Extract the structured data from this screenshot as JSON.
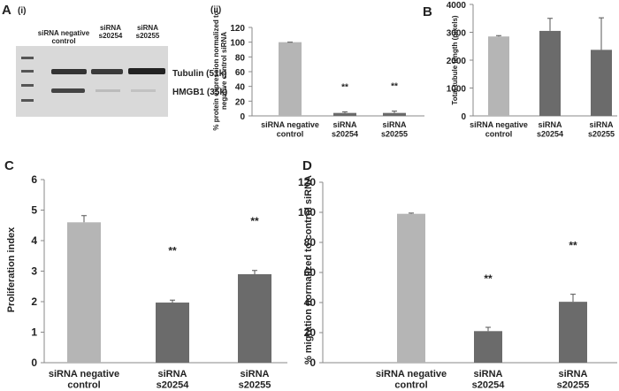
{
  "blot": {
    "panel_label": "A",
    "sub_label": "(i)",
    "lanes": [
      "siRNA negative\ncontrol",
      "siRNA\ns20254",
      "siRNA\ns20255"
    ],
    "bands": [
      "Tubulin (51k)",
      "HMGB1 (35k)"
    ]
  },
  "chart_data": [
    {
      "type": "bar",
      "panel_label": "(ii)",
      "ylabel": "% protein expression normalized to\nnegative control siRNA",
      "categories": [
        "siRNA negative\ncontrol",
        "siRNA\ns20254",
        "siRNA\ns20255"
      ],
      "values": [
        100,
        4,
        4
      ],
      "errors": [
        0,
        1.5,
        2.5
      ],
      "significance": [
        null,
        "**",
        "**"
      ],
      "colors": [
        "#b5b5b5",
        "#6b6b6b",
        "#6b6b6b"
      ],
      "ylim": [
        0,
        120
      ],
      "yticks": [
        0,
        20,
        40,
        60,
        80,
        100,
        120
      ]
    },
    {
      "type": "bar",
      "panel_label": "B",
      "ylabel": "Total tubule length (pixels)",
      "categories": [
        "siRNA negative\ncontrol",
        "siRNA\ns20254",
        "siRNA\ns20255"
      ],
      "values": [
        2850,
        3050,
        2370
      ],
      "errors": [
        30,
        450,
        1150
      ],
      "colors": [
        "#b5b5b5",
        "#6b6b6b",
        "#6b6b6b"
      ],
      "ylim": [
        0,
        4000
      ],
      "yticks": [
        0,
        1000,
        2000,
        3000,
        4000
      ]
    },
    {
      "type": "bar",
      "panel_label": "C",
      "ylabel": "Proliferation index",
      "categories": [
        "siRNA negative\ncontrol",
        "siRNA\ns20254",
        "siRNA\ns20255"
      ],
      "values": [
        4.6,
        1.97,
        2.9
      ],
      "errors": [
        0.22,
        0.08,
        0.12
      ],
      "significance": [
        null,
        "**",
        "**"
      ],
      "colors": [
        "#b5b5b5",
        "#6b6b6b",
        "#6b6b6b"
      ],
      "ylim": [
        0,
        6
      ],
      "yticks": [
        0,
        1,
        2,
        3,
        4,
        5,
        6
      ]
    },
    {
      "type": "bar",
      "panel_label": "D",
      "ylabel": "% migration normalized to control siRNA",
      "categories": [
        "siRNA negative\ncontrol",
        "siRNA\ns20254",
        "siRNA\ns20255"
      ],
      "values": [
        99,
        21,
        40.5
      ],
      "errors": [
        0.5,
        2.5,
        5
      ],
      "significance": [
        null,
        "**",
        "**"
      ],
      "colors": [
        "#b5b5b5",
        "#6b6b6b",
        "#6b6b6b"
      ],
      "ylim": [
        0,
        120
      ],
      "yticks": [
        0,
        20,
        40,
        60,
        80,
        100,
        120
      ]
    }
  ]
}
